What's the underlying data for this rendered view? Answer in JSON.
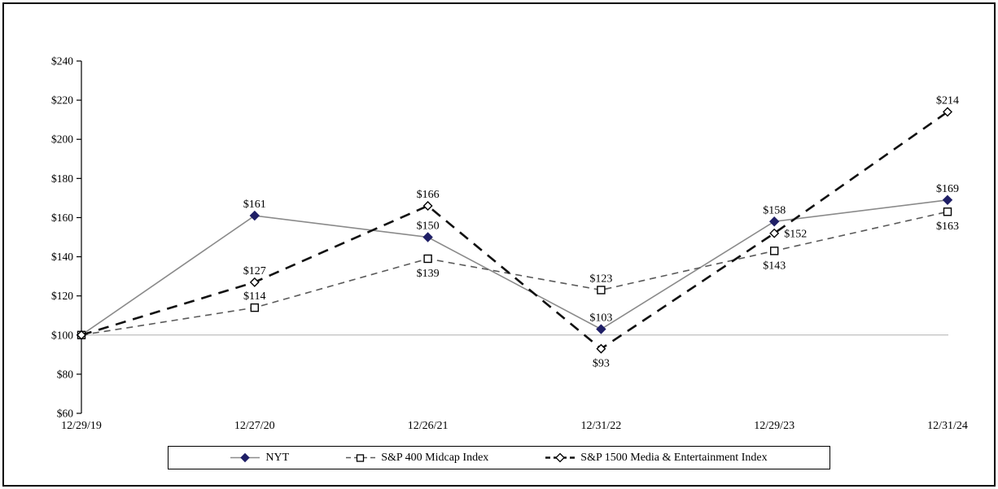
{
  "figure": {
    "background": "#ffffff",
    "border_color": "#000000"
  },
  "chart_data": {
    "type": "line",
    "categories": [
      "12/29/19",
      "12/27/20",
      "12/26/21",
      "12/31/22",
      "12/29/23",
      "12/31/24"
    ],
    "y_axis": {
      "min": 60,
      "max": 240,
      "step": 20,
      "tick_labels": [
        "$240",
        "$220",
        "$200",
        "$180",
        "$160",
        "$140",
        "$120",
        "$100",
        "$80",
        "$60"
      ],
      "axis_color": "#000000"
    },
    "baseline": {
      "value": 100,
      "color": "#b0b0b0"
    },
    "series": [
      {
        "name": "NYT",
        "values": [
          100,
          161,
          150,
          103,
          158,
          169
        ],
        "point_labels": [
          "",
          "$161",
          "$150",
          "$103",
          "$158",
          "$169"
        ],
        "label_positions": [
          "none",
          "above",
          "above",
          "above",
          "above",
          "above"
        ],
        "line_style": "solid",
        "line_color": "#8a8a8a",
        "line_width": 1.6,
        "marker": "diamond-filled",
        "marker_color": "#1f1f66"
      },
      {
        "name": "S&P 400 Midcap Index",
        "values": [
          100,
          114,
          139,
          123,
          143,
          163
        ],
        "point_labels": [
          "",
          "$114",
          "$139",
          "$123",
          "$143",
          "$163"
        ],
        "label_positions": [
          "none",
          "above",
          "below",
          "above",
          "below",
          "below"
        ],
        "line_style": "dashed",
        "line_color": "#5a5a5a",
        "line_width": 1.6,
        "marker": "square-open",
        "marker_color": "#000000"
      },
      {
        "name": "S&P 1500 Media & Entertainment Index",
        "values": [
          100,
          127,
          166,
          93,
          152,
          214
        ],
        "point_labels": [
          "",
          "$127",
          "$166",
          "$93",
          "$152",
          "$214"
        ],
        "label_positions": [
          "none",
          "above",
          "above",
          "below",
          "right",
          "above"
        ],
        "line_style": "dashed-bold",
        "line_color": "#111111",
        "line_width": 2.6,
        "marker": "diamond-open",
        "marker_color": "#000000"
      }
    ],
    "legend": {
      "position": "bottom-center",
      "border_color": "#000000"
    }
  }
}
